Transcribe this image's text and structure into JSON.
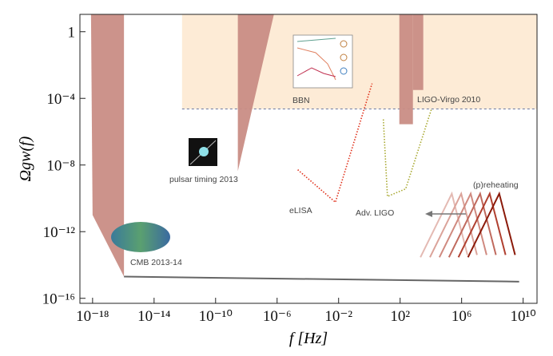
{
  "chart_data": {
    "type": "line",
    "x_label": "f [Hz]",
    "y_label": "Ωgw(f)",
    "log_x": true,
    "log_y": true,
    "xlim": [
      1.5e-19,
      80000000000.0
    ],
    "ylim": [
      5e-17,
      11
    ],
    "xticks": [
      {
        "value": 1e-18,
        "label": "10⁻¹⁸"
      },
      {
        "value": 1e-14,
        "label": "10⁻¹⁴"
      },
      {
        "value": 1e-10,
        "label": "10⁻¹⁰"
      },
      {
        "value": 1e-06,
        "label": "10⁻⁶"
      },
      {
        "value": 0.01,
        "label": "10⁻²"
      },
      {
        "value": 100,
        "label": "10²"
      },
      {
        "value": 1000000,
        "label": "10⁶"
      },
      {
        "value": 10000000000,
        "label": "10¹⁰"
      }
    ],
    "yticks": [
      {
        "value": 1e-16,
        "label": "10⁻¹⁶"
      },
      {
        "value": 1e-12,
        "label": "10⁻¹²"
      },
      {
        "value": 1e-08,
        "label": "10⁻⁸"
      },
      {
        "value": 0.0001,
        "label": "10⁻⁴"
      },
      1
    ],
    "series": [
      {
        "name": "BBN",
        "style": "fill",
        "color": "#fde6cc",
        "x": [
          6.6e-13,
          80000000000.0,
          80000000000.0,
          6.6e-13
        ],
        "y": [
          11,
          11,
          2.3e-05,
          2.3e-05
        ]
      },
      {
        "style": "dashed",
        "color": "#5a6a9a",
        "x": [
          6.6e-13,
          80000000000.0
        ],
        "y": [
          2.3e-05,
          2.3e-05
        ]
      },
      {
        "name": "CMB  2013-14",
        "style": "fill",
        "color": "#c98d85",
        "x": [
          7.9e-19,
          1.1e-16,
          1.1e-16,
          1e-18
        ],
        "y": [
          11,
          11,
          2e-15,
          1e-11
        ]
      },
      {
        "style": "solid",
        "color": "#666666",
        "x": [
          1.1e-16,
          5500000000.0
        ],
        "y": [
          2e-15,
          1e-15
        ]
      },
      {
        "name": "pulsar timing 2013",
        "style": "fill",
        "color": "#c98d85",
        "x": [
          2.8e-09,
          6.2e-07,
          2.8e-09
        ],
        "y": [
          11,
          11,
          4.3e-09
        ]
      },
      {
        "name": "LIGO-Virgo 2010",
        "style": "fill",
        "color": "#c98d85",
        "x": [
          89,
          680,
          680,
          89
        ],
        "y": [
          11,
          11,
          2.8e-06,
          2.8e-06
        ]
      },
      {
        "style": "fill",
        "color": "#c98d85",
        "x": [
          680,
          3200,
          3200,
          680
        ],
        "y": [
          11,
          11,
          0.00032,
          0.00032
        ]
      },
      {
        "name": "eLISA",
        "style": "dotted",
        "color": "#e0301a",
        "x": [
          2.2e-05,
          0.0062,
          1.5
        ],
        "y": [
          5.2e-09,
          5.8e-11,
          0.00078
        ]
      },
      {
        "name": "Adv. LIGO",
        "style": "dotted",
        "color": "#a8a830",
        "x": [
          8.1,
          15,
          230,
          11000
        ],
        "y": [
          5.5e-06,
          1.3e-10,
          3.7e-10,
          2.3e-05
        ]
      },
      {
        "style": "solid",
        "color": "#e4bab3",
        "x": [
          2100,
          230000,
          2400000
        ],
        "y": [
          2.9e-14,
          1.9e-10,
          4e-14
        ]
      },
      {
        "style": "solid",
        "color": "#dba39a",
        "x": [
          8700,
          940000,
          10000000
        ],
        "y": [
          2.9e-14,
          1.9e-10,
          4e-14
        ]
      },
      {
        "style": "solid",
        "color": "#d08a80",
        "x": [
          36000,
          3900000,
          42000000
        ],
        "y": [
          2.9e-14,
          1.9e-10,
          4e-14
        ]
      },
      {
        "style": "solid",
        "color": "#c06a5e",
        "x": [
          150000,
          16000000,
          170000000
        ],
        "y": [
          2.9e-14,
          1.9e-10,
          4e-14
        ]
      },
      {
        "style": "solid",
        "color": "#b04030",
        "x": [
          620000,
          67000000,
          720000000
        ],
        "y": [
          2.9e-14,
          1.9e-10,
          4e-14
        ]
      },
      {
        "name": "(p)reheating",
        "style": "solid",
        "color": "#8b1a0a",
        "x": [
          2600000,
          280000000,
          3000000000
        ],
        "y": [
          2.9e-14,
          1.9e-10,
          4e-14
        ]
      }
    ]
  }
}
